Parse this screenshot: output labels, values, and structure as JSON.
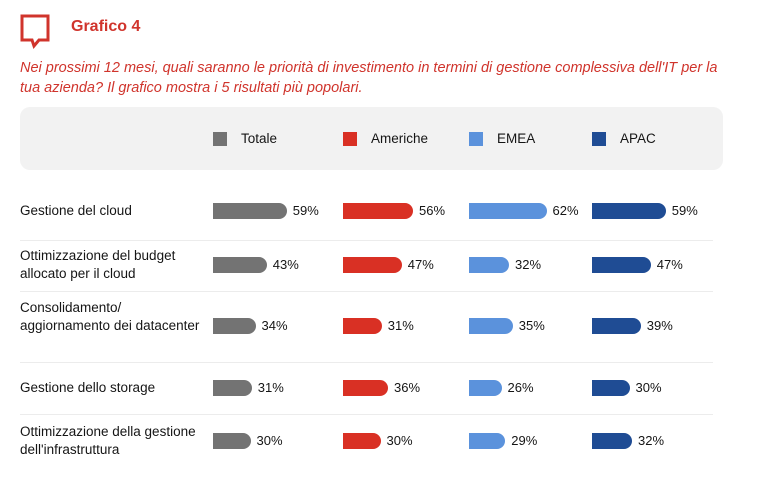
{
  "header": {
    "title": "Grafico 4",
    "icon": "speech-bubble-icon",
    "subtitle": "Nei prossimi 12 mesi, quali saranno le priorità di investimento in termini di gestione complessiva dell'IT per la tua azienda? Il grafico mostra i 5 risultati più popolari."
  },
  "chart_data": {
    "type": "bar",
    "orientation": "horizontal",
    "categories": [
      "Gestione del cloud",
      "Ottimizzazione del budget allocato per il cloud",
      "Consolidamento/ aggiornamento dei datacenter",
      "Gestione dello storage",
      "Ottimizzazione della gestione dell'infrastruttura"
    ],
    "series": [
      {
        "name": "Totale",
        "color": "#737373",
        "values": [
          59,
          43,
          34,
          31,
          30
        ],
        "labels": [
          "59%",
          "43%",
          "34%",
          "31%",
          "30%"
        ]
      },
      {
        "name": "Americhe",
        "color": "#d93024",
        "values": [
          56,
          47,
          31,
          36,
          30
        ],
        "labels": [
          "56%",
          "47%",
          "31%",
          "36%",
          "30%"
        ]
      },
      {
        "name": "EMEA",
        "color": "#5b92dc",
        "values": [
          62,
          32,
          35,
          26,
          29
        ],
        "labels": [
          "62%",
          "32%",
          "35%",
          "26%",
          "29%"
        ]
      },
      {
        "name": "APAC",
        "color": "#1f4c94",
        "values": [
          59,
          47,
          39,
          30,
          32
        ],
        "labels": [
          "59%",
          "47%",
          "39%",
          "30%",
          "32%"
        ]
      }
    ],
    "unit": "%",
    "legend": "top"
  }
}
